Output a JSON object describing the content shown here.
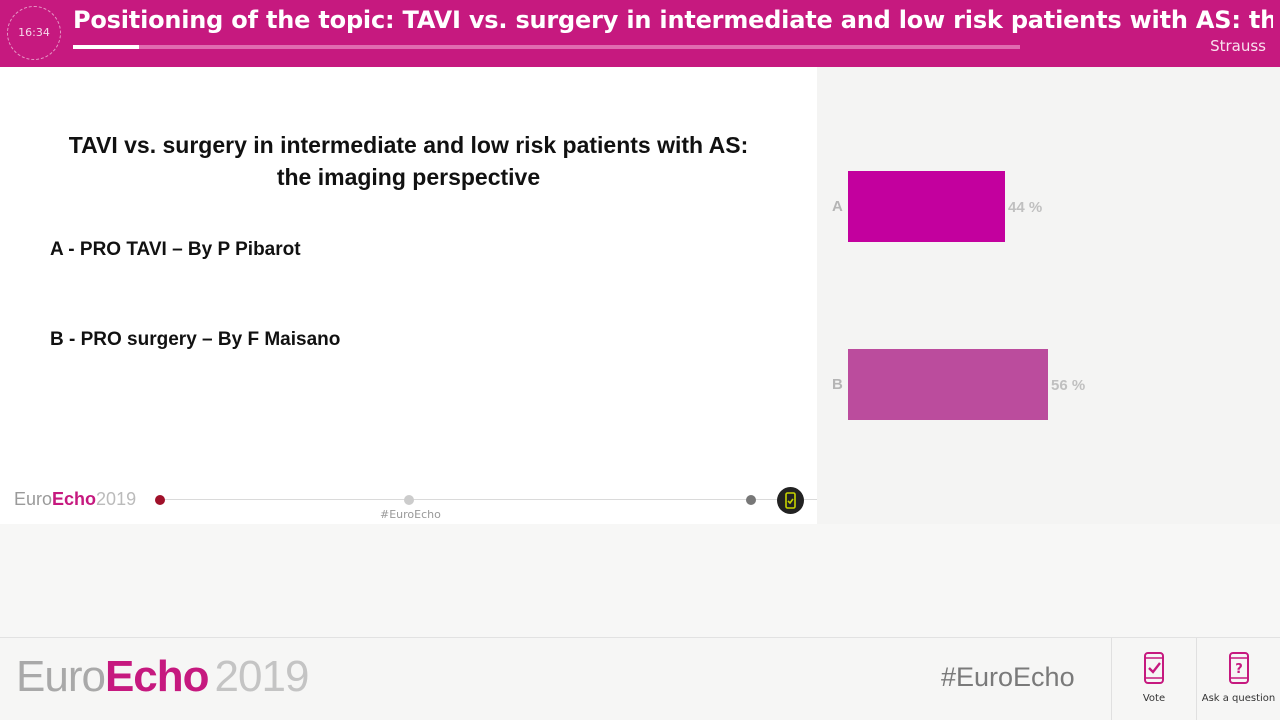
{
  "header": {
    "time": "16:34",
    "title": "Positioning of the topic: TAVI vs. surgery in intermediate and low risk patients with AS: the imagi...",
    "speaker": "Strauss",
    "progress_fraction": 0.07
  },
  "slide": {
    "title_line1": "TAVI vs. surgery in intermediate and low risk patients with AS:",
    "title_line2": "the imaging perspective",
    "option_a": "A - PRO TAVI – By P Pibarot",
    "option_b": "B - PRO surgery – By F Maisano",
    "logo_euro": "Euro",
    "logo_echo": "Echo",
    "logo_year": "2019",
    "hashtag": "#EuroEcho"
  },
  "poll": {
    "results": [
      {
        "letter": "A",
        "percent": 44,
        "label": "44 %",
        "color": "#c3009e"
      },
      {
        "letter": "B",
        "percent": 56,
        "label": "56 %",
        "color": "#bb4c9d"
      }
    ]
  },
  "bottom": {
    "logo_euro": "Euro",
    "logo_echo": "Echo",
    "logo_year": "2019",
    "hashtag": "#EuroEcho",
    "vote_label": "Vote",
    "ask_label": "Ask a question"
  },
  "colors": {
    "brand": "#c6197f",
    "dot_live": "#a0102a",
    "dot_mid": "#cccccc",
    "dot_end": "#777777"
  }
}
